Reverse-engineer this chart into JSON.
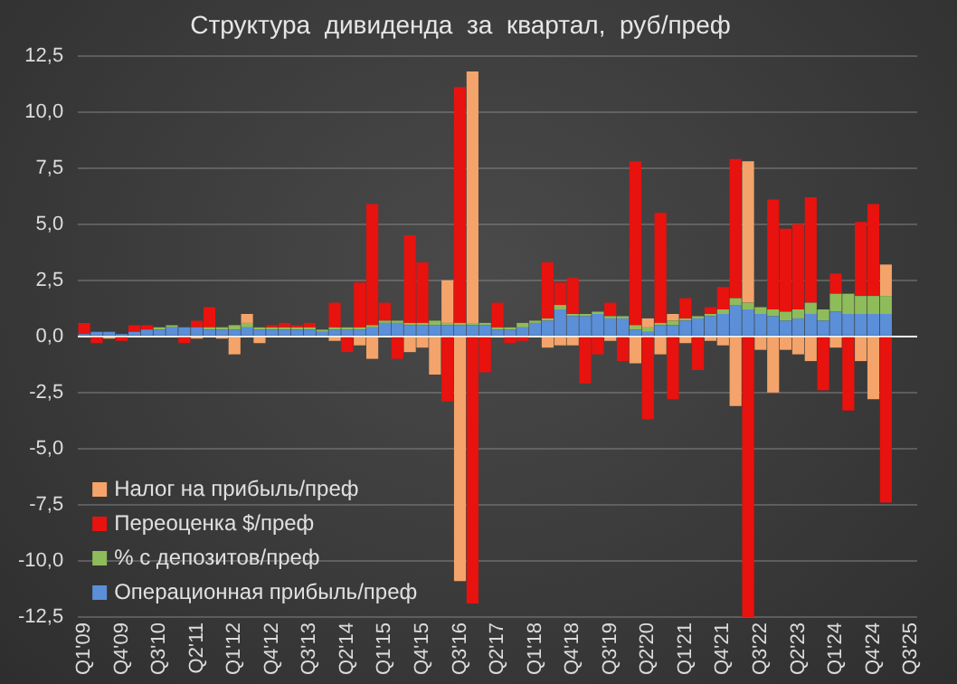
{
  "chart_data": {
    "type": "bar",
    "title": "Структура  дивиденда  за  квартал,  руб/преф",
    "stacked": true,
    "grid": "y",
    "legend": "bottom left",
    "categories": [
      "Q1'09",
      null,
      null,
      "Q4'09",
      null,
      null,
      "Q3'10",
      null,
      null,
      "Q2'11",
      null,
      null,
      "Q1'12",
      null,
      null,
      "Q4'12",
      null,
      null,
      "Q3'13",
      null,
      null,
      "Q2'14",
      null,
      null,
      "Q1'15",
      null,
      null,
      "Q4'15",
      null,
      null,
      "Q3'16",
      null,
      null,
      "Q2'17",
      null,
      null,
      "Q1'18",
      null,
      null,
      "Q4'18",
      null,
      null,
      "Q3'19",
      null,
      null,
      "Q2'20",
      null,
      null,
      "Q1'21",
      null,
      null,
      "Q4'21",
      null,
      null,
      "Q3'22",
      null,
      null,
      "Q2'23",
      null,
      null,
      "Q1'24",
      null,
      null,
      "Q4'24",
      null,
      null,
      "Q3'25"
    ],
    "ylim": [
      -12.5,
      12.5
    ],
    "yticks": [
      {
        "value": -12.5,
        "label": "-12,5"
      },
      {
        "value": -10,
        "label": "-10,0"
      },
      {
        "value": -7.5,
        "label": "-7,5"
      },
      {
        "value": -5,
        "label": "-5,0"
      },
      {
        "value": -2.5,
        "label": "-2,5"
      },
      {
        "value": 0,
        "label": "0,0"
      },
      {
        "value": 2.5,
        "label": "2,5"
      },
      {
        "value": 5,
        "label": "5,0"
      },
      {
        "value": 7.5,
        "label": "7,5"
      },
      {
        "value": 10,
        "label": "10,0"
      },
      {
        "value": 12.5,
        "label": "12,5"
      }
    ],
    "series": [
      {
        "name": "Операционная прибыль/преф",
        "color": "#5b8fd8",
        "values": [
          0.1,
          0.2,
          0.2,
          0.1,
          0.2,
          0.3,
          0.3,
          0.4,
          0.4,
          0.4,
          0.3,
          0.3,
          0.3,
          0.4,
          0.3,
          0.3,
          0.3,
          0.3,
          0.3,
          0.2,
          0.3,
          0.3,
          0.3,
          0.4,
          0.6,
          0.6,
          0.5,
          0.5,
          0.5,
          0.5,
          0.5,
          0.5,
          0.5,
          0.3,
          0.3,
          0.4,
          0.6,
          0.7,
          1.2,
          0.9,
          0.9,
          1.0,
          0.8,
          0.8,
          0.3,
          0.2,
          0.5,
          0.5,
          0.7,
          0.8,
          0.9,
          1.0,
          1.4,
          1.2,
          1.0,
          0.9,
          0.7,
          0.8,
          1.0,
          0.7,
          1.1,
          1.0,
          1.0,
          1.0,
          1.0,
          null,
          null
        ]
      },
      {
        "name": "% с депозитов/преф",
        "color": "#8fbc5a",
        "values": [
          null,
          null,
          null,
          null,
          null,
          null,
          0.1,
          0.1,
          null,
          null,
          0.1,
          0.1,
          0.2,
          0.2,
          0.1,
          0.1,
          0.1,
          0.1,
          0.1,
          0.1,
          0.1,
          0.1,
          0.1,
          0.1,
          0.1,
          0.1,
          0.1,
          0.1,
          0.2,
          0.1,
          0.1,
          0.1,
          0.1,
          0.1,
          0.1,
          0.2,
          0.1,
          0.1,
          0.2,
          0.1,
          0.1,
          0.1,
          0.1,
          0.1,
          0.2,
          0.2,
          0.1,
          0.2,
          0.1,
          0.1,
          0.1,
          0.2,
          0.3,
          0.3,
          0.3,
          0.3,
          0.4,
          0.4,
          0.5,
          0.5,
          0.8,
          0.9,
          0.8,
          0.8,
          0.8,
          null,
          null
        ]
      },
      {
        "name": "Переоценка $/преф",
        "color": "#e8120e",
        "values": [
          0.5,
          -0.3,
          null,
          -0.2,
          0.3,
          0.2,
          null,
          null,
          -0.3,
          0.3,
          0.9,
          null,
          null,
          null,
          null,
          0.1,
          0.2,
          0.1,
          0.2,
          null,
          1.1,
          -0.7,
          2.0,
          5.4,
          0.8,
          -1.0,
          3.9,
          2.7,
          null,
          -2.9,
          10.5,
          -11.9,
          -1.6,
          1.1,
          -0.3,
          -0.2,
          null,
          2.5,
          1.0,
          1.6,
          -2.1,
          -0.8,
          0.6,
          -1.1,
          7.3,
          -3.7,
          4.9,
          -2.8,
          0.9,
          -1.5,
          0.3,
          1.0,
          6.2,
          -12.5,
          null,
          4.9,
          3.7,
          3.8,
          4.7,
          -2.4,
          0.9,
          -3.3,
          3.3,
          4.1,
          -7.4,
          null,
          null
        ]
      },
      {
        "name": "Налог на прибыль/преф",
        "color": "#f4a46a",
        "values": [
          null,
          null,
          -0.1,
          null,
          null,
          null,
          null,
          null,
          null,
          -0.1,
          null,
          -0.1,
          -0.8,
          0.4,
          -0.3,
          null,
          null,
          null,
          null,
          null,
          -0.2,
          null,
          -0.4,
          -1.0,
          null,
          null,
          -0.7,
          -0.5,
          -1.7,
          1.9,
          -10.9,
          11.2,
          null,
          null,
          null,
          null,
          null,
          -0.5,
          -0.4,
          -0.4,
          null,
          null,
          -0.2,
          null,
          -1.2,
          0.4,
          -0.8,
          0.3,
          -0.3,
          null,
          -0.2,
          -0.4,
          -3.1,
          6.3,
          -0.6,
          -2.5,
          -0.6,
          -0.8,
          -1.1,
          null,
          -0.5,
          null,
          -1.1,
          -2.8,
          1.4,
          null,
          null
        ]
      }
    ]
  }
}
